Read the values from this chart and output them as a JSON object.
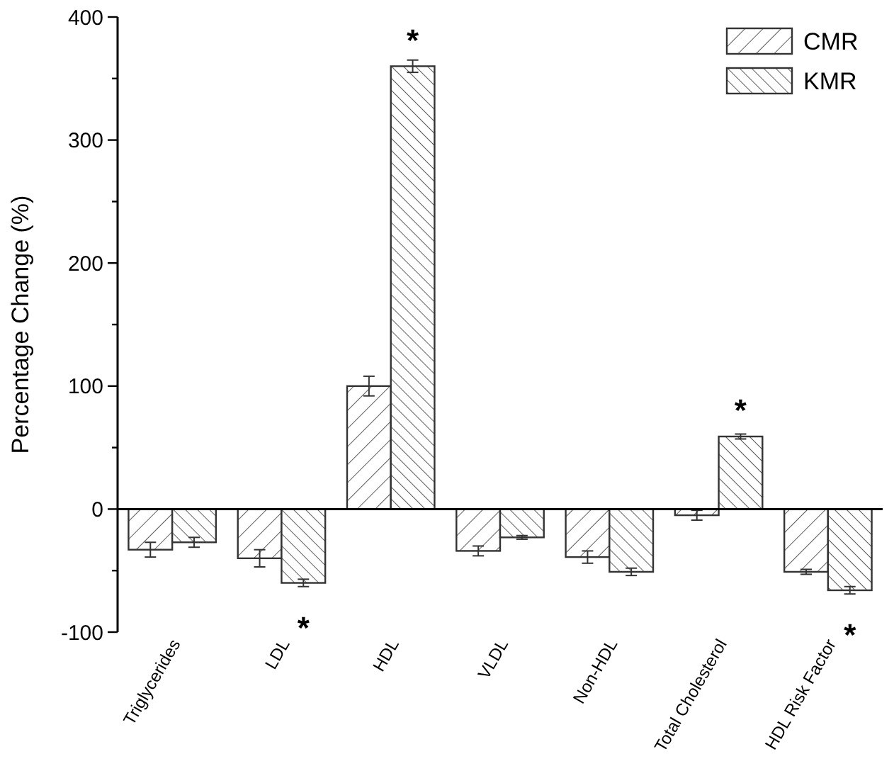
{
  "chart_data": {
    "type": "bar",
    "ylabel": "Percentage Change (%)",
    "categories": [
      "Triglycerides",
      "LDL",
      "HDL",
      "VLDL",
      "Non-HDL",
      "Total Cholesterol",
      "HDL Risk Factor"
    ],
    "series": [
      {
        "name": "CMR",
        "color": "#333333",
        "values": [
          -33,
          -40,
          100,
          -34,
          -39,
          -5,
          -51
        ],
        "errors": [
          6,
          7,
          8,
          4,
          5,
          4,
          2
        ]
      },
      {
        "name": "KMR",
        "color": "#333333",
        "values": [
          -27,
          -60,
          360,
          -23,
          -51,
          59,
          -66
        ],
        "errors": [
          4,
          3,
          5,
          1.5,
          3,
          2,
          3
        ]
      }
    ],
    "ylim": [
      -100,
      400
    ],
    "yticks": [
      -100,
      {
        "value": -50,
        "label": null
      },
      0,
      {
        "value": 50,
        "label": null
      },
      100,
      {
        "value": 150,
        "label": null
      },
      200,
      {
        "value": 250,
        "label": null
      },
      300,
      {
        "value": 350,
        "label": null
      },
      400
    ],
    "legend": "top right",
    "annotations": [
      {
        "text": "*",
        "x": "LDL",
        "y": -60
      },
      {
        "text": "*",
        "x": "HDL",
        "y": 360
      },
      {
        "text": "*",
        "x": "Total Cholesterol",
        "y": 59
      },
      {
        "text": "*",
        "x": "HDL Risk Factor",
        "y": -66
      }
    ]
  }
}
